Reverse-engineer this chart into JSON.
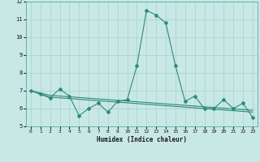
{
  "xlabel": "Humidex (Indice chaleur)",
  "ylabel": "",
  "x_values": [
    0,
    1,
    2,
    3,
    4,
    5,
    6,
    7,
    8,
    9,
    10,
    11,
    12,
    13,
    14,
    15,
    16,
    17,
    18,
    19,
    20,
    21,
    22,
    23
  ],
  "line1_y": [
    7.0,
    6.8,
    6.6,
    7.1,
    6.7,
    5.6,
    6.0,
    6.3,
    5.8,
    6.4,
    6.5,
    8.4,
    11.5,
    11.25,
    10.8,
    8.4,
    6.4,
    6.7,
    6.0,
    6.0,
    6.5,
    6.0,
    6.3,
    5.5
  ],
  "line2_y": [
    7.0,
    6.82,
    6.64,
    6.6,
    6.56,
    6.52,
    6.48,
    6.44,
    6.4,
    6.36,
    6.32,
    6.28,
    6.24,
    6.2,
    6.16,
    6.12,
    6.08,
    6.04,
    6.0,
    5.96,
    5.92,
    5.88,
    5.84,
    5.8
  ],
  "line3_y": [
    7.0,
    6.87,
    6.74,
    6.7,
    6.66,
    6.62,
    6.58,
    6.54,
    6.5,
    6.46,
    6.42,
    6.38,
    6.34,
    6.3,
    6.26,
    6.22,
    6.18,
    6.14,
    6.1,
    6.06,
    6.02,
    5.98,
    5.94,
    5.9
  ],
  "line_color": "#2E8B7A",
  "bg_color": "#C8E8E5",
  "grid_color": "#A8D0CD",
  "ylim": [
    5,
    12
  ],
  "xlim": [
    -0.5,
    23.5
  ],
  "yticks": [
    5,
    6,
    7,
    8,
    9,
    10,
    11,
    12
  ],
  "xticks": [
    0,
    1,
    2,
    3,
    4,
    5,
    6,
    7,
    8,
    9,
    10,
    11,
    12,
    13,
    14,
    15,
    16,
    17,
    18,
    19,
    20,
    21,
    22,
    23
  ]
}
